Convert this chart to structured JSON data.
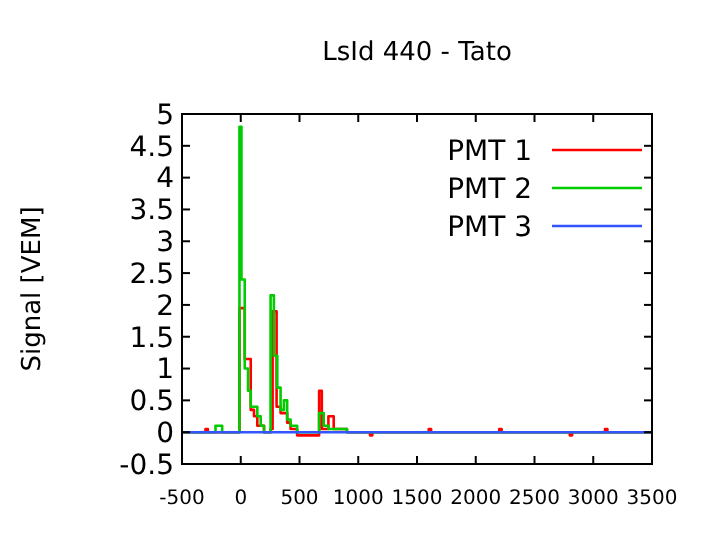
{
  "chart_data": {
    "type": "step",
    "title": "LsId 440 - Tato",
    "ylabel": "Signal [VEM]",
    "xlim": [
      -500,
      3500
    ],
    "xticks": [
      -500,
      0,
      500,
      1000,
      1500,
      2000,
      2500,
      3000,
      3500
    ],
    "ylim": [
      -0.5,
      5
    ],
    "yticks": [
      -0.5,
      0,
      0.5,
      1,
      1.5,
      2,
      2.5,
      3,
      3.5,
      4,
      4.5,
      5
    ],
    "legend": "top right",
    "grid": false,
    "series": [
      {
        "name": "PMT 1",
        "color": "#ff0000",
        "x": [
          -500,
          -300,
          -280,
          -11,
          34,
          85,
          113,
          141,
          198,
          254,
          271,
          305,
          339,
          395,
          424,
          480,
          667,
          690,
          746,
          791,
          904,
          1100,
          1120,
          1600,
          1620,
          2200,
          2220,
          2800,
          2820,
          3100,
          3120,
          3500
        ],
        "values": [
          0,
          0.05,
          0,
          1.95,
          1.15,
          0.35,
          0.25,
          0.1,
          0,
          0.05,
          1.9,
          0.4,
          0.3,
          0.15,
          0.05,
          -0.05,
          0.65,
          0.05,
          0.25,
          0.05,
          0,
          -0.05,
          0,
          0.05,
          0,
          0.05,
          0,
          -0.05,
          0,
          0.05,
          0,
          0
        ]
      },
      {
        "name": "PMT 2",
        "color": "#00cc00",
        "x": [
          -500,
          -215,
          -158,
          -11,
          6,
          34,
          62,
          85,
          141,
          170,
          198,
          254,
          282,
          311,
          339,
          367,
          395,
          424,
          480,
          667,
          706,
          746,
          904,
          3500
        ],
        "values": [
          0,
          0.1,
          0,
          4.8,
          2.4,
          1.0,
          0.65,
          0.4,
          0.25,
          0.1,
          0,
          2.15,
          1.2,
          0.7,
          0.35,
          0.5,
          0.2,
          0.1,
          0,
          0.3,
          0.1,
          0.05,
          0,
          0
        ]
      },
      {
        "name": "PMT 3",
        "color": "#3355ff",
        "x": [
          -500,
          3500
        ],
        "values": [
          0,
          0
        ]
      }
    ]
  }
}
